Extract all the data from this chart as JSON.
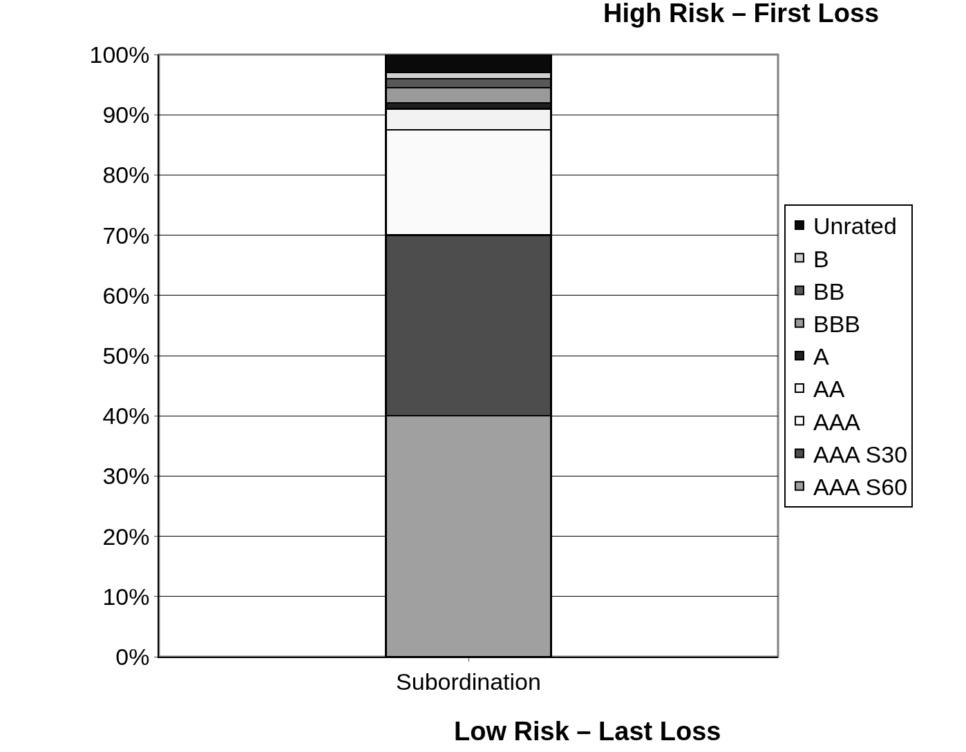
{
  "chart_data": {
    "type": "bar",
    "title": "High Risk – First Loss",
    "categories": [
      "Subordination"
    ],
    "stacked": true,
    "series": [
      {
        "name": "AAA S60",
        "color": "#a0a0a0",
        "values": [
          40
        ]
      },
      {
        "name": "AAA S30",
        "color": "#4d4d4d",
        "values": [
          30
        ]
      },
      {
        "name": "AAA",
        "color": "#fafafa",
        "values": [
          17.5
        ]
      },
      {
        "name": "AA",
        "color": "#f2f2f2",
        "values": [
          3.5
        ]
      },
      {
        "name": "A",
        "color": "#202020",
        "values": [
          1
        ]
      },
      {
        "name": "BBB",
        "color": "#9a9a9a",
        "values": [
          2.5
        ]
      },
      {
        "name": "BB",
        "color": "#585858",
        "values": [
          1.5
        ]
      },
      {
        "name": "B",
        "color": "#d0d0d0",
        "values": [
          1
        ]
      },
      {
        "name": "Unrated",
        "color": "#0a0a0a",
        "values": [
          3
        ]
      }
    ],
    "ylim": [
      0,
      100
    ],
    "yticks": [
      {
        "value": 0,
        "label": "0%"
      },
      {
        "value": 10,
        "label": "10%"
      },
      {
        "value": 20,
        "label": "20%"
      },
      {
        "value": 30,
        "label": "30%"
      },
      {
        "value": 40,
        "label": "40%"
      },
      {
        "value": 50,
        "label": "50%"
      },
      {
        "value": 60,
        "label": "60%"
      },
      {
        "value": 70,
        "label": "70%"
      },
      {
        "value": 80,
        "label": "80%"
      },
      {
        "value": 90,
        "label": "90%"
      },
      {
        "value": 100,
        "label": "100%"
      }
    ],
    "grid": "y",
    "legend": "right",
    "annotations": [
      "Low Risk – Last Loss"
    ]
  }
}
